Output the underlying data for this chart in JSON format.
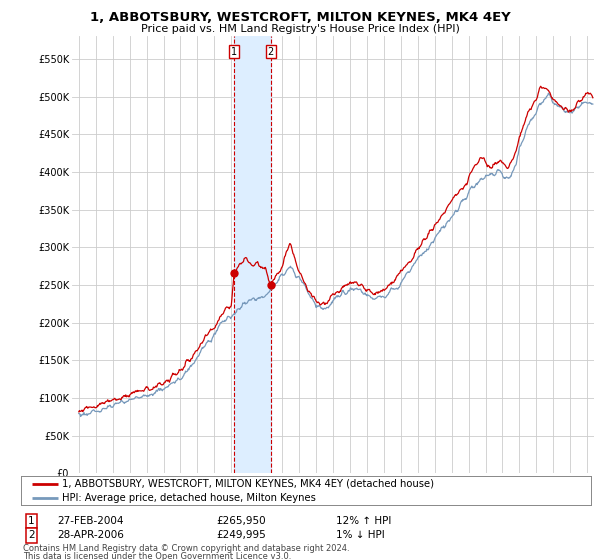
{
  "title": "1, ABBOTSBURY, WESTCROFT, MILTON KEYNES, MK4 4EY",
  "subtitle": "Price paid vs. HM Land Registry's House Price Index (HPI)",
  "ylabel_ticks": [
    "£0",
    "£50K",
    "£100K",
    "£150K",
    "£200K",
    "£250K",
    "£300K",
    "£350K",
    "£400K",
    "£450K",
    "£500K",
    "£550K"
  ],
  "ytick_values": [
    0,
    50000,
    100000,
    150000,
    200000,
    250000,
    300000,
    350000,
    400000,
    450000,
    500000,
    550000
  ],
  "ylim": [
    0,
    580000
  ],
  "xlim_start": 1994.6,
  "xlim_end": 2025.4,
  "legend_line1": "1, ABBOTSBURY, WESTCROFT, MILTON KEYNES, MK4 4EY (detached house)",
  "legend_line2": "HPI: Average price, detached house, Milton Keynes",
  "annotation1_label": "1",
  "annotation1_date": "27-FEB-2004",
  "annotation1_price": "£265,950",
  "annotation1_hpi": "12% ↑ HPI",
  "annotation2_label": "2",
  "annotation2_date": "28-APR-2006",
  "annotation2_price": "£249,995",
  "annotation2_hpi": "1% ↓ HPI",
  "footer1": "Contains HM Land Registry data © Crown copyright and database right 2024.",
  "footer2": "This data is licensed under the Open Government Licence v3.0.",
  "line_color_red": "#cc0000",
  "line_color_blue": "#7799bb",
  "shade_color": "#ddeeff",
  "bg_color": "#ffffff",
  "grid_color": "#cccccc",
  "sale1_x": 2004.15,
  "sale1_y": 265950,
  "sale2_x": 2006.33,
  "sale2_y": 249995
}
